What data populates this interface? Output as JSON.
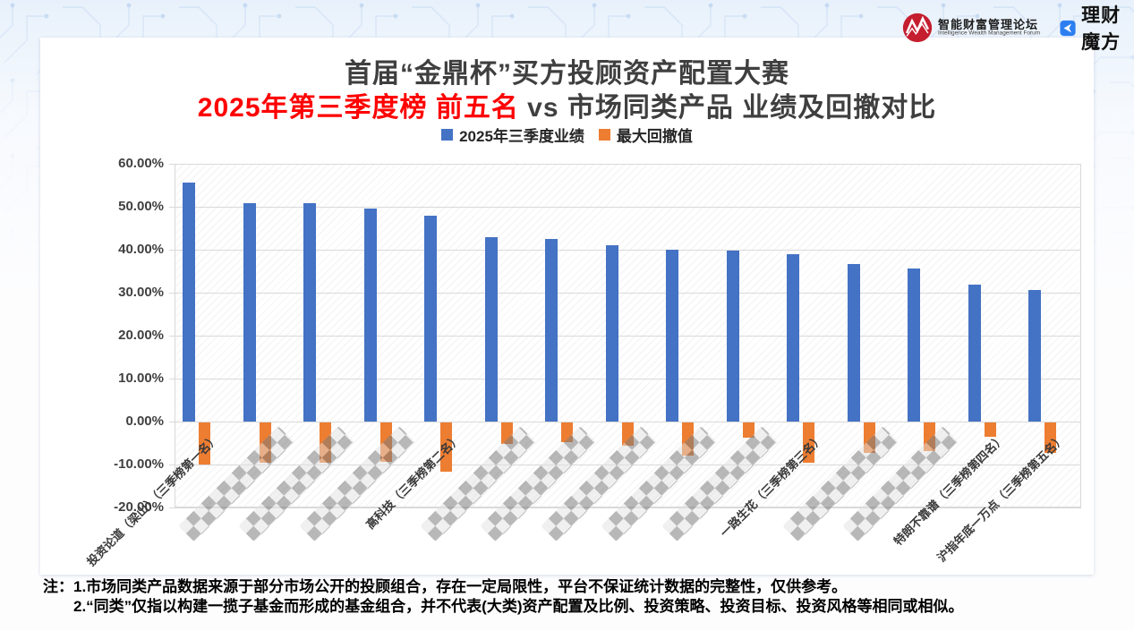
{
  "logos": {
    "forum": {
      "name_cn": "智能财富管理论坛",
      "name_en": "Intelligence Wealth Management Forum",
      "brand_color": "#c41e2f"
    },
    "lcmf": {
      "name": "理财魔方",
      "brand_color": "#2d7ff0"
    }
  },
  "header": {
    "title": "首届“金鼎杯”买方投顾资产配置大赛",
    "subtitle_red": "2025年第三季度榜 前五名",
    "subtitle_rest": " vs 市场同类产品 业绩及回撤对比"
  },
  "chart_data": {
    "type": "bar",
    "title": "首届“金鼎杯”买方投顾资产配置大赛",
    "subtitle": "2025年第三季度榜 前五名 vs 市场同类产品 业绩及回撤对比",
    "unit": "percent",
    "grid": true,
    "legend_position": "top",
    "ylim": [
      -20,
      60
    ],
    "y_ticks": [
      {
        "label": "60.00%",
        "value": 60
      },
      {
        "label": "50.00%",
        "value": 50
      },
      {
        "label": "40.00%",
        "value": 40
      },
      {
        "label": "30.00%",
        "value": 30
      },
      {
        "label": "20.00%",
        "value": 20
      },
      {
        "label": "10.00%",
        "value": 10
      },
      {
        "label": "0.00%",
        "value": 0
      },
      {
        "label": "-10.00%",
        "value": -10
      },
      {
        "label": "-20.00%",
        "value": -20
      }
    ],
    "categories": [
      {
        "label": "投资论道（梁山）（三季榜第一名）",
        "censored": false
      },
      {
        "label": "",
        "censored": true
      },
      {
        "label": "",
        "censored": true
      },
      {
        "label": "",
        "censored": true
      },
      {
        "label": "高科技（三季榜第二名）",
        "censored": false
      },
      {
        "label": "",
        "censored": true
      },
      {
        "label": "",
        "censored": true
      },
      {
        "label": "",
        "censored": true
      },
      {
        "label": "",
        "censored": true
      },
      {
        "label": "",
        "censored": true
      },
      {
        "label": "一路生花（三季榜第三名）",
        "censored": false
      },
      {
        "label": "",
        "censored": true
      },
      {
        "label": "",
        "censored": true
      },
      {
        "label": "特朗不靠谱（三季榜第四名）",
        "censored": false
      },
      {
        "label": "沪指年底一万点（三季榜第五名）",
        "censored": false
      }
    ],
    "series": [
      {
        "name": "2025年三季度业绩",
        "color": "#4472C4",
        "values": [
          55.7,
          50.8,
          50.8,
          49.6,
          47.9,
          42.9,
          42.5,
          41.0,
          40.0,
          39.8,
          39.0,
          36.7,
          35.6,
          31.9,
          30.6
        ]
      },
      {
        "name": "最大回撤值",
        "color": "#ED7D31",
        "values": [
          -9.8,
          -9.4,
          -9.4,
          -9.1,
          -11.5,
          -4.9,
          -4.5,
          -5.4,
          -7.7,
          -3.5,
          -9.4,
          -7.0,
          -6.7,
          -3.4,
          -7.0
        ]
      }
    ]
  },
  "notes": {
    "line1": "注：1.市场同类产品数据来源于部分市场公开的投顾组合，存在一定局限性，平台不保证统计数据的完整性，仅供参考。",
    "line2": "2.“同类”仅指以构建一揽子基金而形成的基金组合，并不代表(大类)资产配置及比例、投资策略、投资目标、投资风格等相同或相似。"
  }
}
